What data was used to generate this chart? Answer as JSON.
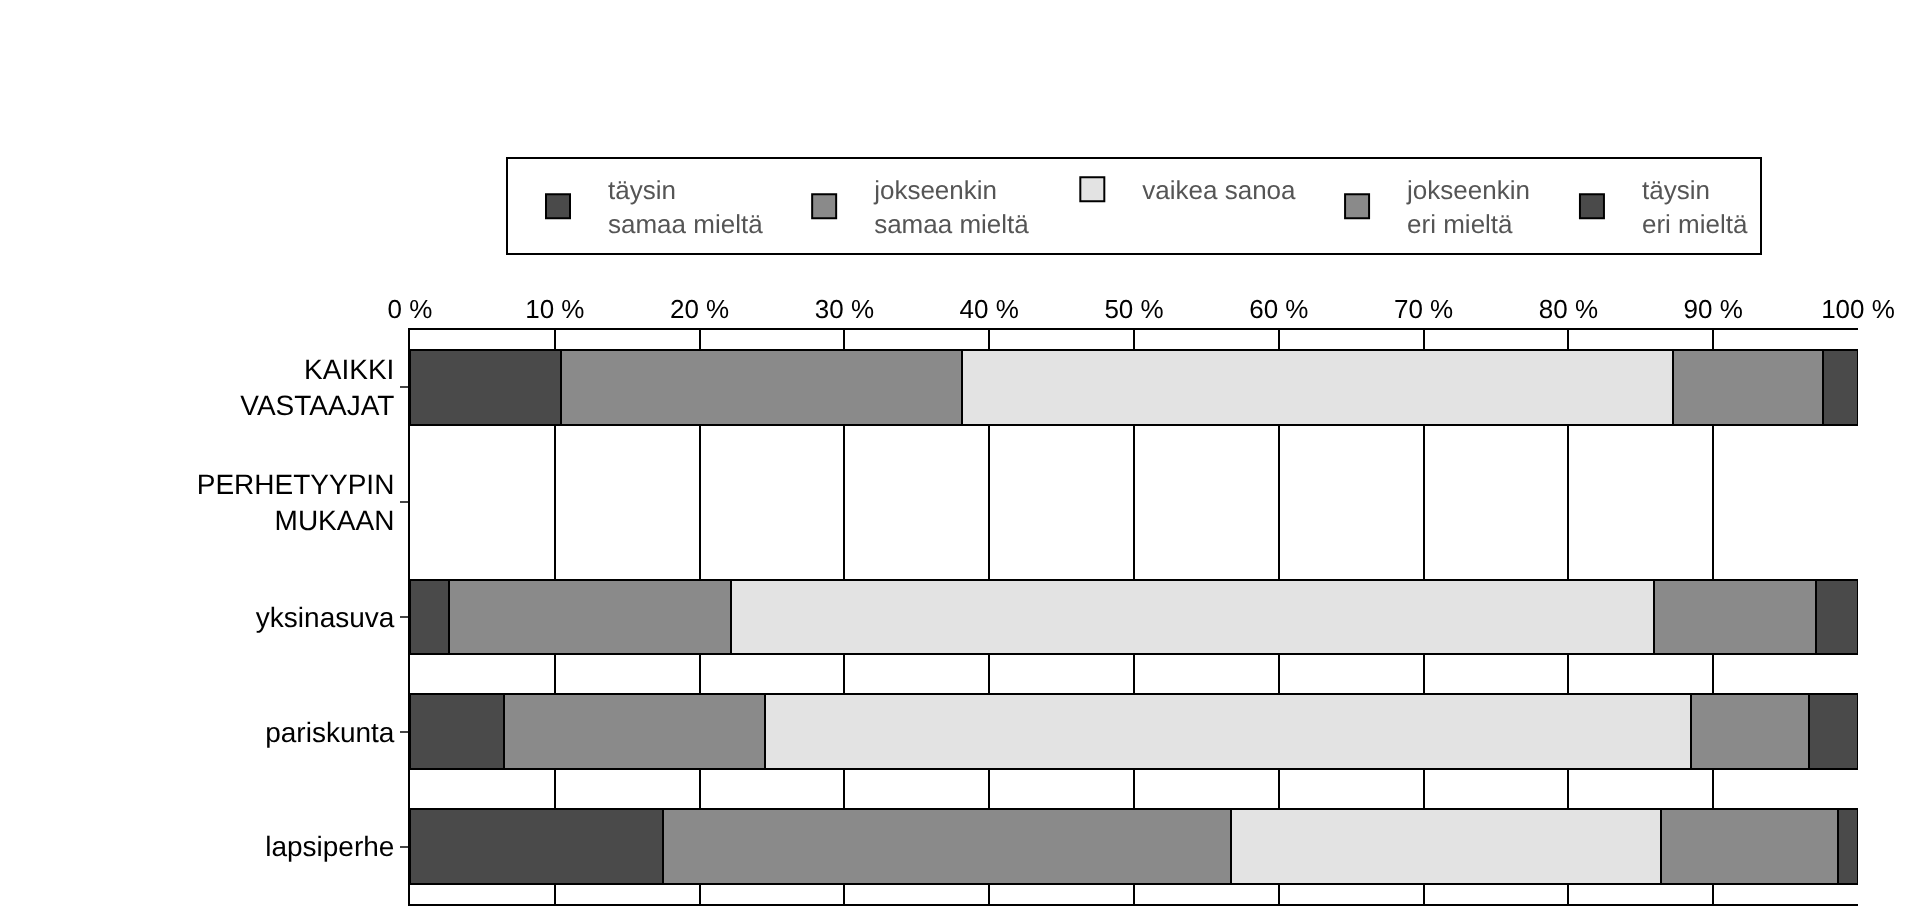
{
  "chart_data": {
    "type": "bar",
    "orientation": "horizontal",
    "stacked": true,
    "categories": [
      "KAIKKI\nVASTAAJAT",
      "PERHETYYPIN\nMUKAAN",
      "yksinasuva",
      "pariskunta",
      "lapsiperhe"
    ],
    "series": [
      {
        "name": "täysin\nsamaa mieltä",
        "color": "#4a4a4a",
        "values": [
          10.4,
          null,
          2.7,
          6.5,
          17.5
        ]
      },
      {
        "name": "jokseenkin\nsamaa mieltä",
        "color": "#8a8a8a",
        "values": [
          27.7,
          null,
          19.5,
          18.0,
          39.2
        ]
      },
      {
        "name": "vaikea sanoa",
        "color": "#e3e3e3",
        "values": [
          49.1,
          null,
          63.7,
          64.0,
          29.7
        ]
      },
      {
        "name": "jokseenkin\neri mieltä",
        "color": "#8a8a8a",
        "values": [
          10.4,
          null,
          11.2,
          8.1,
          12.2
        ]
      },
      {
        "name": "täysin\neri mieltä",
        "color": "#4a4a4a",
        "values": [
          2.4,
          null,
          2.9,
          3.4,
          1.4
        ]
      }
    ],
    "xlim": [
      0,
      100
    ],
    "xticks": [
      {
        "value": 0,
        "label": "0 %"
      },
      {
        "value": 10,
        "label": "10 %"
      },
      {
        "value": 20,
        "label": "20 %"
      },
      {
        "value": 30,
        "label": "30 %"
      },
      {
        "value": 40,
        "label": "40 %"
      },
      {
        "value": 50,
        "label": "50 %"
      },
      {
        "value": 60,
        "label": "60 %"
      },
      {
        "value": 70,
        "label": "70 %"
      },
      {
        "value": 80,
        "label": "80 %"
      },
      {
        "value": 90,
        "label": "90 %"
      },
      {
        "value": 100,
        "label": "100 %"
      }
    ],
    "grid": "x",
    "legend": "top"
  }
}
